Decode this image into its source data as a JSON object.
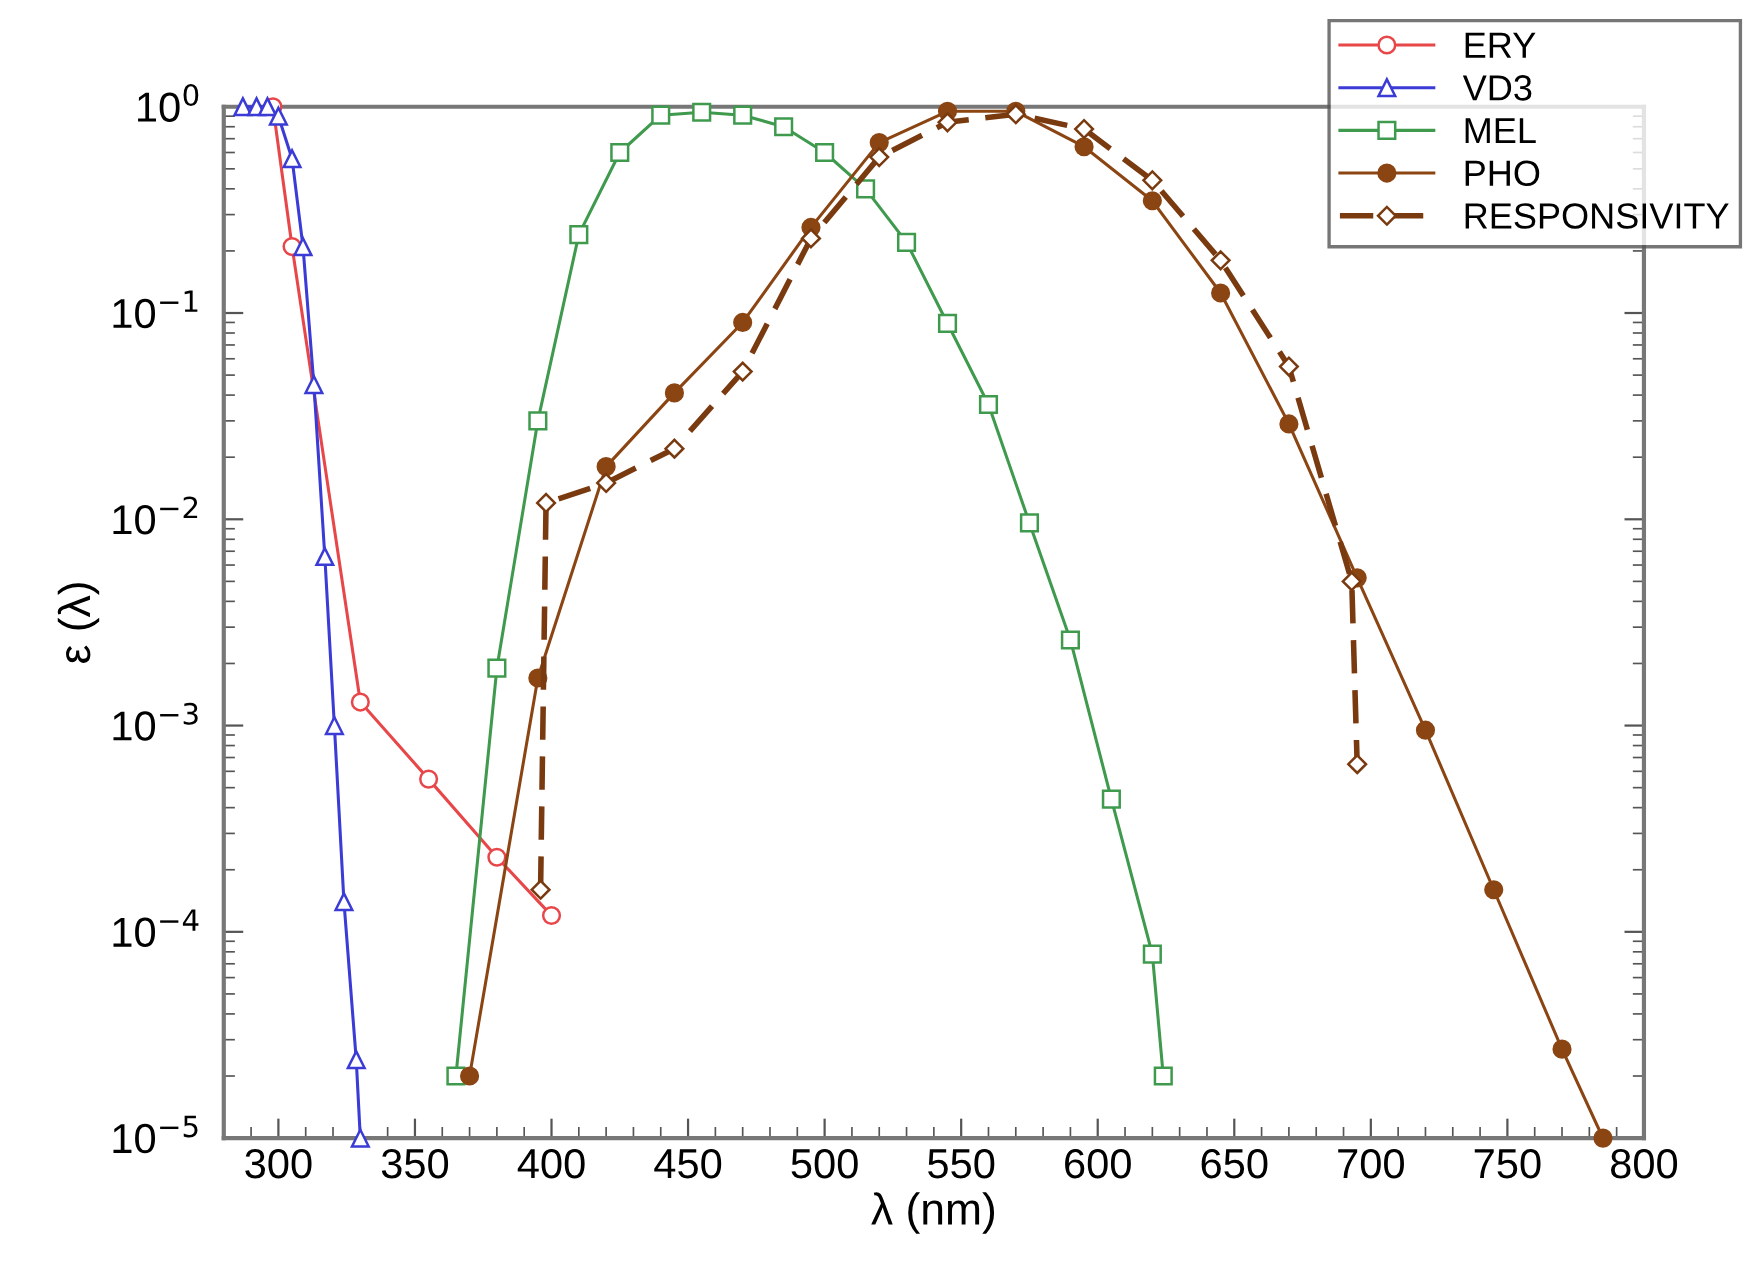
{
  "chart_data": {
    "type": "line",
    "xlabel": "λ (nm)",
    "ylabel": "ε (λ)",
    "log": "y",
    "grid": false,
    "legend": "top right",
    "xlim": [
      280,
      800
    ],
    "xticks": [
      300,
      350,
      400,
      450,
      500,
      550,
      600,
      650,
      700,
      750,
      800
    ],
    "ylim": [
      1e-05,
      1
    ],
    "yticks": [
      {
        "value": 1e-05,
        "label": "10$^{−5}$"
      },
      {
        "value": 0.0001,
        "label": "10$^{−4}$"
      },
      {
        "value": 0.001,
        "label": "10$^{−3}$"
      },
      {
        "value": 0.01,
        "label": "10$^{−2}$"
      },
      {
        "value": 0.1,
        "label": "10$^{−1}$"
      },
      {
        "value": 1,
        "label": "10$^{0}$"
      }
    ],
    "series": [
      {
        "name": "ERY",
        "color": "#e8474a",
        "marker": "circle",
        "line_style": "solid",
        "x": [
          298,
          305,
          330,
          355,
          380,
          400
        ],
        "values": [
          1,
          0.21,
          0.0013,
          0.00055,
          0.00023,
          0.00012
        ]
      },
      {
        "name": "VD3",
        "color": "#3b3bd6",
        "marker": "triangle",
        "line_style": "solid",
        "x": [
          287,
          292,
          296,
          300,
          305,
          309,
          313,
          317,
          320.5,
          324,
          328.5,
          330
        ],
        "values": [
          1,
          1,
          1,
          0.9,
          0.56,
          0.21,
          0.045,
          0.0066,
          0.001,
          0.00014,
          2.4e-05,
          1e-05
        ]
      },
      {
        "name": "MEL",
        "color": "#3f9a4e",
        "marker": "square",
        "line_style": "solid",
        "x": [
          365,
          380,
          395,
          410,
          425,
          440,
          455,
          470,
          485,
          500,
          515,
          530,
          545,
          560,
          575,
          590,
          605,
          620,
          624
        ],
        "values": [
          2e-05,
          0.0019,
          0.03,
          0.24,
          0.6,
          0.91,
          0.94,
          0.91,
          0.8,
          0.6,
          0.4,
          0.22,
          0.089,
          0.036,
          0.0096,
          0.0026,
          0.00044,
          7.8e-05,
          2e-05
        ]
      },
      {
        "name": "PHO",
        "color": "#8b4513",
        "marker": "circle_filled",
        "line_style": "solid",
        "x": [
          370,
          395,
          420,
          445,
          470,
          495,
          520,
          545,
          570,
          595,
          620,
          645,
          670,
          695,
          720,
          745,
          770,
          785
        ],
        "values": [
          2e-05,
          0.0017,
          0.018,
          0.041,
          0.09,
          0.26,
          0.67,
          0.95,
          0.95,
          0.64,
          0.35,
          0.125,
          0.029,
          0.0052,
          0.00095,
          0.00016,
          2.7e-05,
          1e-05
        ]
      },
      {
        "name": "RESPONSIVITY",
        "color": "#7a3a10",
        "marker": "diamond",
        "line_style": "dashed",
        "x": [
          396,
          398,
          420,
          445,
          470,
          495,
          520,
          545,
          570,
          595,
          620,
          645,
          670,
          693,
          695
        ],
        "values": [
          0.00016,
          0.012,
          0.015,
          0.022,
          0.052,
          0.23,
          0.57,
          0.84,
          0.92,
          0.78,
          0.44,
          0.18,
          0.055,
          0.005,
          0.00065
        ]
      }
    ]
  }
}
